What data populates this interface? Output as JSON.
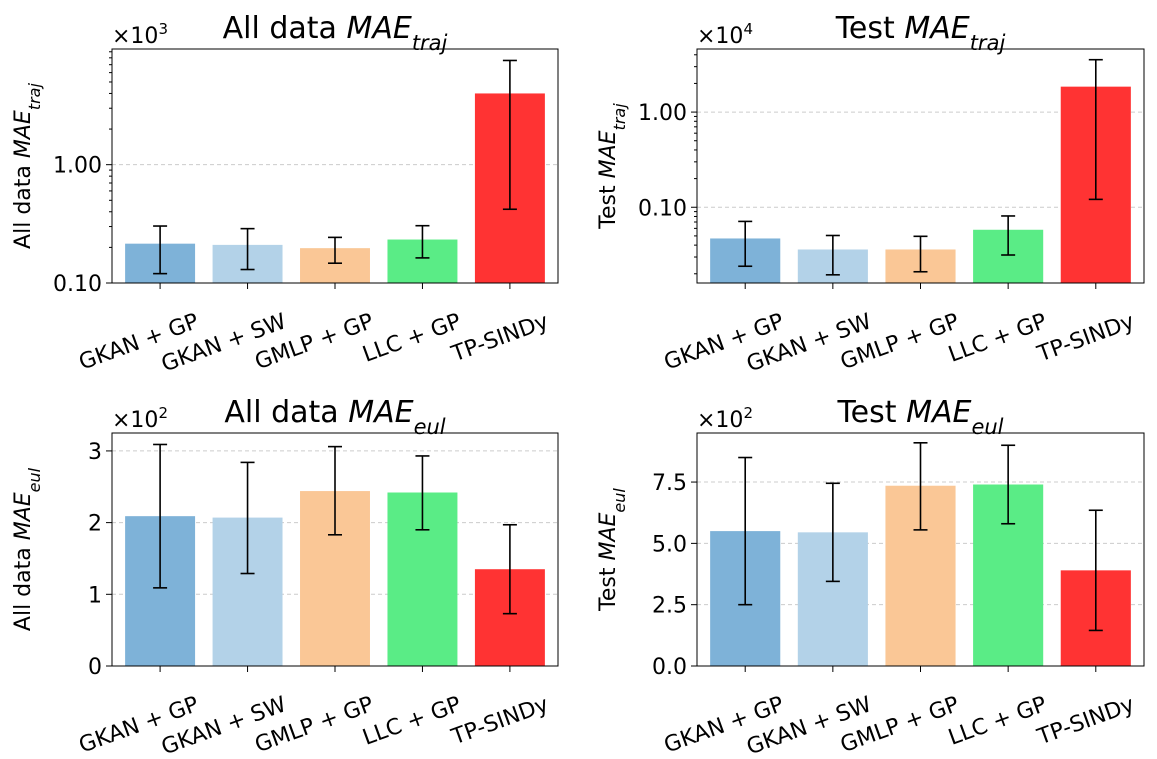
{
  "chart_data": [
    {
      "id": "p1",
      "type": "bar",
      "title": {
        "text": "All data ",
        "italic": "MAE",
        "sub": "traj"
      },
      "ylabel": {
        "text": "All data ",
        "italic": "MAE",
        "sub": "traj"
      },
      "scale_text": "×10",
      "scale_exp": "3",
      "yscale": "log",
      "ylim": [
        0.1,
        9.5
      ],
      "yticks": [
        0.1,
        1.0
      ],
      "ytick_labels": [
        "0.10",
        "1.00"
      ],
      "minor_ticks": [
        0.2,
        0.3,
        0.4,
        0.5,
        0.6,
        0.7,
        0.8,
        0.9,
        2,
        3,
        4,
        5,
        6,
        7,
        8,
        9
      ],
      "grid_values": [
        0.1,
        1.0
      ],
      "categories": [
        "GKAN + GP",
        "GKAN + SW",
        "GMLP + GP",
        "LLC + GP",
        "TP-SINDy"
      ],
      "values": [
        0.215,
        0.21,
        0.197,
        0.233,
        4.0
      ],
      "err_low": [
        0.12,
        0.13,
        0.147,
        0.163,
        0.42
      ],
      "err_high": [
        0.303,
        0.288,
        0.243,
        0.305,
        7.6
      ]
    },
    {
      "id": "p2",
      "type": "bar",
      "title": {
        "text": "Test ",
        "italic": "MAE",
        "sub": "traj"
      },
      "ylabel": {
        "text": "Test ",
        "italic": "MAE",
        "sub": "traj"
      },
      "scale_text": "×10",
      "scale_exp": "4",
      "yscale": "log",
      "ylim": [
        0.016,
        4.6
      ],
      "yticks": [
        0.1,
        1.0
      ],
      "ytick_labels": [
        "0.10",
        "1.00"
      ],
      "minor_ticks": [
        0.02,
        0.03,
        0.04,
        0.05,
        0.06,
        0.07,
        0.08,
        0.09,
        0.2,
        0.3,
        0.4,
        0.5,
        0.6,
        0.7,
        0.8,
        0.9,
        2,
        3,
        4
      ],
      "grid_values": [
        0.1,
        1.0
      ],
      "categories": [
        "GKAN + GP",
        "GKAN + SW",
        "GMLP + GP",
        "LLC + GP",
        "TP-SINDy"
      ],
      "values": [
        0.047,
        0.036,
        0.036,
        0.058,
        1.85
      ],
      "err_low": [
        0.024,
        0.0195,
        0.021,
        0.0315,
        0.121
      ],
      "err_high": [
        0.071,
        0.0505,
        0.0495,
        0.081,
        3.55
      ]
    },
    {
      "id": "p3",
      "type": "bar",
      "title": {
        "text": "All data ",
        "italic": "MAE",
        "sub": "eul"
      },
      "ylabel": {
        "text": "All data ",
        "italic": "MAE",
        "sub": "eul"
      },
      "scale_text": "×10",
      "scale_exp": "2",
      "yscale": "linear",
      "ylim": [
        0,
        3.25
      ],
      "yticks": [
        0,
        1,
        2,
        3
      ],
      "ytick_labels": [
        "0",
        "1",
        "2",
        "3"
      ],
      "minor_ticks": [],
      "grid_values": [
        1,
        2,
        3
      ],
      "categories": [
        "GKAN + GP",
        "GKAN + SW",
        "GMLP + GP",
        "LLC + GP",
        "TP-SINDy"
      ],
      "values": [
        2.09,
        2.07,
        2.44,
        2.42,
        1.35
      ],
      "err_low": [
        1.09,
        1.29,
        1.83,
        1.9,
        0.73
      ],
      "err_high": [
        3.09,
        2.84,
        3.06,
        2.93,
        1.97
      ]
    },
    {
      "id": "p4",
      "type": "bar",
      "title": {
        "text": "Test ",
        "italic": "MAE",
        "sub": "eul"
      },
      "ylabel": {
        "text": "Test ",
        "italic": "MAE",
        "sub": "eul"
      },
      "scale_text": "×10",
      "scale_exp": "2",
      "yscale": "linear",
      "ylim": [
        0,
        9.5
      ],
      "yticks": [
        0,
        2.5,
        5.0,
        7.5
      ],
      "ytick_labels": [
        "0.0",
        "2.5",
        "5.0",
        "7.5"
      ],
      "minor_ticks": [],
      "grid_values": [
        2.5,
        5.0,
        7.5
      ],
      "categories": [
        "GKAN + GP",
        "GKAN + SW",
        "GMLP + GP",
        "LLC + GP",
        "TP-SINDy"
      ],
      "values": [
        5.5,
        5.45,
        7.35,
        7.4,
        3.9
      ],
      "err_low": [
        2.5,
        3.45,
        5.55,
        5.8,
        1.45
      ],
      "err_high": [
        8.5,
        7.45,
        9.1,
        9.0,
        6.35
      ]
    }
  ],
  "colors": [
    "#7eb2d8",
    "#b3d2e8",
    "#fac796",
    "#5aec86",
    "#ff3333"
  ],
  "grid_color": "#cccccc"
}
